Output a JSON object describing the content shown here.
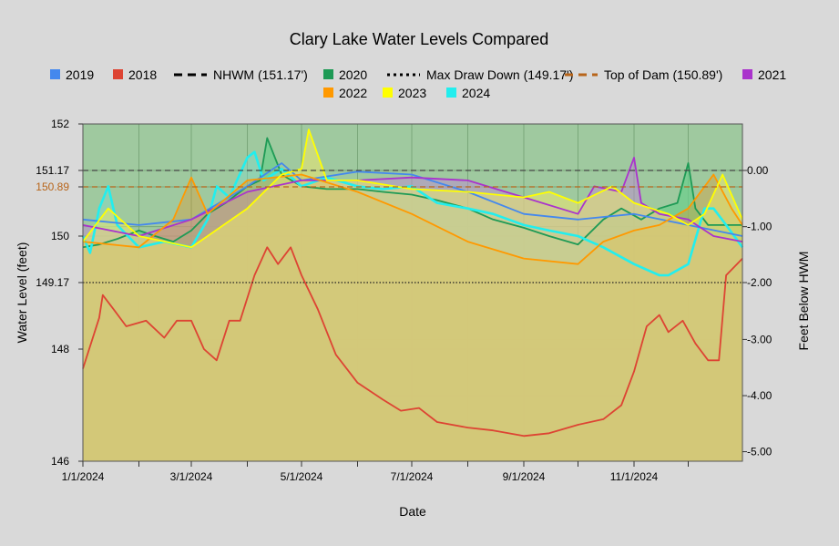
{
  "chart_data": {
    "type": "area",
    "title": "Clary Lake Water Levels Compared",
    "xlabel": "Date",
    "ylabel": "Water Level (feet)",
    "y2label": "Feet Below HWM",
    "ylim": [
      146,
      152
    ],
    "y2lim": [
      -5.33,
      0.83
    ],
    "x_start": "2024-01-01",
    "x_end": "2024-12-31",
    "x_tick_labels": [
      {
        "date": "2024-01-01",
        "label": "1/1/2024"
      },
      {
        "date": "2024-03-01",
        "label": "3/1/2024"
      },
      {
        "date": "2024-05-01",
        "label": "5/1/2024"
      },
      {
        "date": "2024-07-01",
        "label": "7/1/2024"
      },
      {
        "date": "2024-09-01",
        "label": "9/1/2024"
      },
      {
        "date": "2024-11-01",
        "label": "11/1/2024"
      }
    ],
    "x_minor_ticks": [
      "2024-02-01",
      "2024-04-01",
      "2024-06-01",
      "2024-08-01",
      "2024-10-01",
      "2024-12-01"
    ],
    "y_ticks": [
      {
        "value": 146,
        "label": "146",
        "color": "#000000"
      },
      {
        "value": 148,
        "label": "148",
        "color": "#000000"
      },
      {
        "value": 149.17,
        "label": "149.17",
        "color": "#000000"
      },
      {
        "value": 150,
        "label": "150",
        "color": "#000000"
      },
      {
        "value": 150.89,
        "label": "150.89",
        "color": "#b8651a"
      },
      {
        "value": 151.17,
        "label": "151.17",
        "color": "#000000"
      },
      {
        "value": 152,
        "label": "152",
        "color": "#000000"
      }
    ],
    "y2_ticks": [
      {
        "value": 0,
        "label": "0.00"
      },
      {
        "value": -1,
        "label": "-1.00"
      },
      {
        "value": -2,
        "label": "-2.00"
      },
      {
        "value": -3,
        "label": "-3.00"
      },
      {
        "value": -4,
        "label": "-4.00"
      },
      {
        "value": -5,
        "label": "-5.00"
      }
    ],
    "grid": true,
    "legend_position": "top",
    "legend": [
      {
        "name": "2019",
        "symbol": "square",
        "color": "#4488ee"
      },
      {
        "name": "2018",
        "symbol": "square",
        "color": "#dd4433"
      },
      {
        "name": "NHWM (151.17')",
        "symbol": "dash",
        "color": "#000000"
      },
      {
        "name": "2020",
        "symbol": "square",
        "color": "#1e9a55"
      },
      {
        "name": "Max Draw Down (149.17')",
        "symbol": "dot",
        "color": "#000000"
      },
      {
        "name": "Top of Dam (150.89')",
        "symbol": "dash",
        "color": "#b8651a"
      },
      {
        "name": "2021",
        "symbol": "square",
        "color": "#aa33cc"
      },
      {
        "name": "2022",
        "symbol": "square",
        "color": "#ff9900"
      },
      {
        "name": "2023",
        "symbol": "square",
        "color": "#ffff00"
      },
      {
        "name": "2024",
        "symbol": "square",
        "color": "#22eeee"
      }
    ],
    "reference_lines": [
      {
        "name": "NHWM (151.17')",
        "value": 151.17,
        "color": "#444444",
        "style": "dashed"
      },
      {
        "name": "Top of Dam (150.89')",
        "value": 150.89,
        "color": "#b8651a",
        "style": "dashed"
      },
      {
        "name": "Max Draw Down (149.17')",
        "value": 149.17,
        "color": "#222222",
        "style": "dotted"
      }
    ],
    "series": [
      {
        "name": "2018",
        "color": "#dd4433",
        "fill": "rgba(120,160,90,0.85)",
        "x": [
          "2024-01-01",
          "2024-01-10",
          "2024-01-12",
          "2024-01-18",
          "2024-01-25",
          "2024-02-05",
          "2024-02-15",
          "2024-02-22",
          "2024-03-01",
          "2024-03-08",
          "2024-03-15",
          "2024-03-22",
          "2024-03-28",
          "2024-04-05",
          "2024-04-12",
          "2024-04-18",
          "2024-04-25",
          "2024-05-01",
          "2024-05-10",
          "2024-05-20",
          "2024-06-01",
          "2024-06-15",
          "2024-06-25",
          "2024-07-05",
          "2024-07-15",
          "2024-08-01",
          "2024-08-15",
          "2024-09-01",
          "2024-09-15",
          "2024-10-01",
          "2024-10-15",
          "2024-10-25",
          "2024-11-01",
          "2024-11-08",
          "2024-11-15",
          "2024-11-20",
          "2024-11-28",
          "2024-12-05",
          "2024-12-12",
          "2024-12-18",
          "2024-12-22",
          "2024-12-31"
        ],
        "y": [
          147.65,
          148.55,
          148.95,
          148.7,
          148.4,
          148.5,
          148.2,
          148.5,
          148.5,
          148.0,
          147.8,
          148.5,
          148.5,
          149.3,
          149.8,
          149.5,
          149.8,
          149.3,
          148.7,
          147.9,
          147.4,
          147.1,
          146.9,
          146.95,
          146.7,
          146.6,
          146.55,
          146.45,
          146.5,
          146.65,
          146.75,
          147.0,
          147.6,
          148.4,
          148.6,
          148.3,
          148.5,
          148.1,
          147.8,
          147.8,
          149.3,
          149.6
        ]
      },
      {
        "name": "2020",
        "color": "#1e9a55",
        "fill": "rgba(110,205,140,0.75)",
        "x": [
          "2024-01-01",
          "2024-01-10",
          "2024-01-20",
          "2024-02-01",
          "2024-02-10",
          "2024-02-20",
          "2024-03-01",
          "2024-03-10",
          "2024-03-20",
          "2024-04-01",
          "2024-04-08",
          "2024-04-12",
          "2024-04-20",
          "2024-05-01",
          "2024-05-15",
          "2024-06-01",
          "2024-06-15",
          "2024-07-01",
          "2024-07-15",
          "2024-08-01",
          "2024-08-15",
          "2024-09-01",
          "2024-09-15",
          "2024-10-01",
          "2024-10-15",
          "2024-10-25",
          "2024-11-05",
          "2024-11-15",
          "2024-11-25",
          "2024-12-01",
          "2024-12-05",
          "2024-12-12",
          "2024-12-20",
          "2024-12-31"
        ],
        "y": [
          149.8,
          149.85,
          149.95,
          150.1,
          150.0,
          149.9,
          150.1,
          150.4,
          150.6,
          150.9,
          151.0,
          151.75,
          151.1,
          150.9,
          150.85,
          150.85,
          150.8,
          150.75,
          150.65,
          150.5,
          150.3,
          150.15,
          150.0,
          149.85,
          150.3,
          150.5,
          150.3,
          150.5,
          150.6,
          151.3,
          150.5,
          150.2,
          150.2,
          150.2
        ]
      },
      {
        "name": "2024",
        "color": "#22eeee",
        "fill": "rgba(130,220,200,0.45)",
        "x": [
          "2024-01-01",
          "2024-01-05",
          "2024-01-10",
          "2024-01-15",
          "2024-01-20",
          "2024-02-01",
          "2024-02-15",
          "2024-03-01",
          "2024-03-10",
          "2024-03-15",
          "2024-03-22",
          "2024-04-01",
          "2024-04-05",
          "2024-04-10",
          "2024-04-20",
          "2024-05-01",
          "2024-05-15",
          "2024-06-01",
          "2024-06-15",
          "2024-07-01",
          "2024-07-15",
          "2024-08-01",
          "2024-08-15",
          "2024-09-01",
          "2024-09-15",
          "2024-10-01",
          "2024-10-15",
          "2024-11-01",
          "2024-11-15",
          "2024-11-20",
          "2024-12-01",
          "2024-12-10",
          "2024-12-15",
          "2024-12-22",
          "2024-12-31"
        ],
        "y": [
          150.0,
          149.7,
          150.5,
          150.9,
          150.2,
          149.8,
          149.9,
          149.8,
          150.3,
          150.9,
          150.7,
          151.4,
          151.5,
          151.0,
          151.2,
          150.9,
          151.05,
          150.9,
          150.85,
          150.9,
          150.6,
          150.5,
          150.4,
          150.2,
          150.1,
          150.0,
          149.8,
          149.5,
          149.3,
          149.3,
          149.5,
          150.5,
          150.5,
          150.2,
          149.8
        ]
      },
      {
        "name": "2019",
        "color": "#4488ee",
        "fill": "none",
        "x": [
          "2024-01-01",
          "2024-02-01",
          "2024-03-01",
          "2024-04-01",
          "2024-04-20",
          "2024-05-01",
          "2024-06-01",
          "2024-07-01",
          "2024-08-01",
          "2024-09-01",
          "2024-10-01",
          "2024-11-01",
          "2024-12-01",
          "2024-12-31"
        ],
        "y": [
          150.3,
          150.2,
          150.3,
          150.9,
          151.3,
          151.0,
          151.15,
          151.1,
          150.8,
          150.4,
          150.3,
          150.4,
          150.2,
          150.0
        ]
      },
      {
        "name": "2021",
        "color": "#aa33cc",
        "fill": "rgba(190,140,210,0.5)",
        "x": [
          "2024-01-01",
          "2024-02-01",
          "2024-03-01",
          "2024-04-01",
          "2024-05-01",
          "2024-06-01",
          "2024-07-01",
          "2024-08-01",
          "2024-09-01",
          "2024-10-01",
          "2024-10-10",
          "2024-10-25",
          "2024-11-01",
          "2024-11-05",
          "2024-11-15",
          "2024-12-01",
          "2024-12-15",
          "2024-12-31"
        ],
        "y": [
          150.2,
          150.0,
          150.3,
          150.8,
          151.0,
          151.0,
          151.05,
          151.0,
          150.7,
          150.4,
          150.9,
          150.8,
          151.4,
          150.6,
          150.4,
          150.3,
          150.0,
          149.9
        ]
      },
      {
        "name": "2022",
        "color": "#ff9900",
        "fill": "rgba(230,150,40,0.35)",
        "x": [
          "2024-01-01",
          "2024-02-01",
          "2024-02-20",
          "2024-03-01",
          "2024-03-10",
          "2024-04-01",
          "2024-05-01",
          "2024-06-01",
          "2024-07-01",
          "2024-08-01",
          "2024-09-01",
          "2024-10-01",
          "2024-10-15",
          "2024-11-01",
          "2024-11-15",
          "2024-12-01",
          "2024-12-15",
          "2024-12-25",
          "2024-12-31"
        ],
        "y": [
          149.9,
          149.8,
          150.3,
          151.05,
          150.4,
          151.0,
          151.1,
          150.8,
          150.4,
          149.9,
          149.6,
          149.5,
          149.9,
          150.1,
          150.2,
          150.5,
          151.1,
          150.5,
          150.2
        ]
      },
      {
        "name": "2023",
        "color": "#ffff00",
        "fill": "rgba(235,230,110,0.55)",
        "x": [
          "2024-01-01",
          "2024-01-15",
          "2024-02-01",
          "2024-03-01",
          "2024-03-10",
          "2024-04-01",
          "2024-04-20",
          "2024-05-01",
          "2024-05-05",
          "2024-05-15",
          "2024-06-01",
          "2024-07-01",
          "2024-08-01",
          "2024-09-01",
          "2024-09-15",
          "2024-10-01",
          "2024-10-20",
          "2024-11-01",
          "2024-11-20",
          "2024-12-01",
          "2024-12-10",
          "2024-12-20",
          "2024-12-31"
        ],
        "y": [
          149.9,
          150.5,
          150.0,
          149.8,
          150.0,
          150.5,
          151.1,
          151.2,
          151.9,
          151.0,
          151.0,
          150.85,
          150.8,
          150.7,
          150.8,
          150.6,
          150.9,
          150.6,
          150.4,
          150.2,
          150.4,
          151.1,
          150.3
        ]
      }
    ]
  }
}
